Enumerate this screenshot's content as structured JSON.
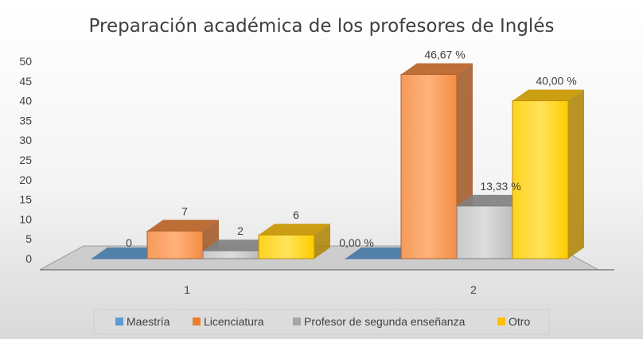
{
  "chart_data": {
    "type": "bar",
    "title": "Preparación académica de los profesores de Inglés",
    "categories": [
      "1",
      "2"
    ],
    "y_ticks": [
      "0",
      "5",
      "10",
      "15",
      "20",
      "25",
      "30",
      "35",
      "40",
      "45",
      "50"
    ],
    "ylim": [
      0,
      50
    ],
    "grid": false,
    "legend_position": "bottom",
    "series": [
      {
        "name": "Maestría",
        "color": "#5b9bd5",
        "values": [
          0,
          0
        ],
        "labels": [
          "0",
          "0,00 %"
        ]
      },
      {
        "name": "Licenciatura",
        "color": "#ed7d31",
        "values": [
          7,
          46.67
        ],
        "labels": [
          "7",
          "46,67 %"
        ]
      },
      {
        "name": "Profesor de segunda enseñanza",
        "color": "#a5a5a5",
        "values": [
          2,
          13.33
        ],
        "labels": [
          "2",
          "13,33 %"
        ]
      },
      {
        "name": "Otro",
        "color": "#ffc000",
        "values": [
          6,
          40
        ],
        "labels": [
          "6",
          "40,00 %"
        ]
      }
    ]
  }
}
